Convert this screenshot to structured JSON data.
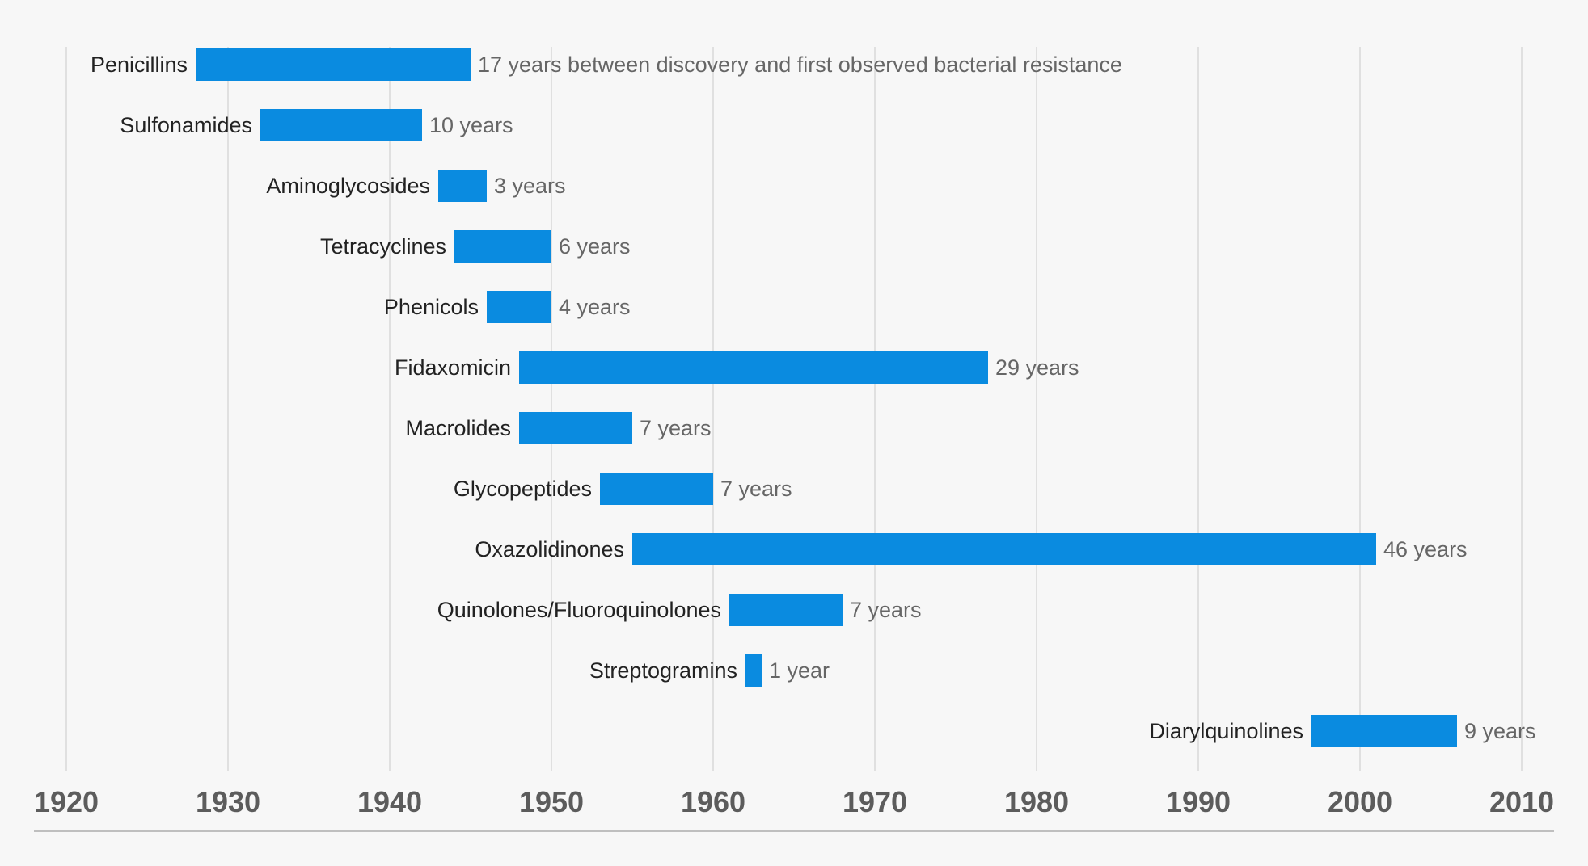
{
  "chart_data": {
    "type": "bar",
    "orientation": "horizontal-range",
    "title": "",
    "xlabel": "",
    "ylabel": "",
    "xlim": [
      1920,
      2010
    ],
    "xticks": [
      "1920",
      "1930",
      "1940",
      "1950",
      "1960",
      "1970",
      "1980",
      "1990",
      "2000",
      "2010"
    ],
    "grid": true,
    "colors": {
      "bar": "#0a8be0",
      "grid": "#d8d8d8",
      "axis": "#bfbfbf"
    },
    "bars": [
      {
        "category": "Penicillins",
        "start": 1928,
        "end": 1945,
        "label": "17 years between discovery and first observed bacterial resistance"
      },
      {
        "category": "Sulfonamides",
        "start": 1932,
        "end": 1942,
        "label": "10 years"
      },
      {
        "category": "Aminoglycosides",
        "start": 1943,
        "end": 1946,
        "label": "3 years"
      },
      {
        "category": "Tetracyclines",
        "start": 1944,
        "end": 1950,
        "label": "6 years"
      },
      {
        "category": "Phenicols",
        "start": 1946,
        "end": 1950,
        "label": "4 years"
      },
      {
        "category": "Fidaxomicin",
        "start": 1948,
        "end": 1977,
        "label": "29 years"
      },
      {
        "category": "Macrolides",
        "start": 1948,
        "end": 1955,
        "label": "7 years"
      },
      {
        "category": "Glycopeptides",
        "start": 1953,
        "end": 1960,
        "label": "7 years"
      },
      {
        "category": "Oxazolidinones",
        "start": 1955,
        "end": 2001,
        "label": "46 years"
      },
      {
        "category": "Quinolones/Fluoroquinolones",
        "start": 1961,
        "end": 1968,
        "label": "7 years"
      },
      {
        "category": "Streptogramins",
        "start": 1962,
        "end": 1963,
        "label": "1 year"
      },
      {
        "category": "Diarylquinolines",
        "start": 1997,
        "end": 2006,
        "label": "9 years"
      }
    ]
  }
}
